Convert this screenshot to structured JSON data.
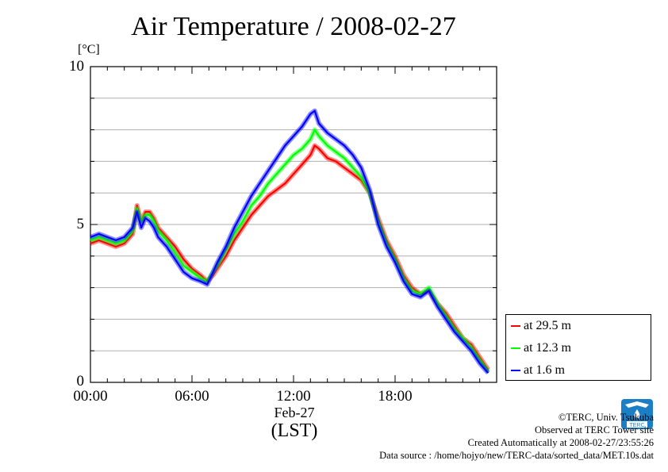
{
  "header": {
    "title": "Air Temperature / 2008-02-27",
    "unit": "[°C]"
  },
  "axis": {
    "y_ticks": [
      "10",
      "5",
      "0"
    ],
    "x_ticks": [
      "00:00",
      "06:00",
      "12:00",
      "18:00"
    ],
    "date_label": "Feb-27",
    "tz_label": "(LST)"
  },
  "legend": {
    "items": [
      {
        "label": "at 29.5 m",
        "color": "#ff0000"
      },
      {
        "label": "at 12.3 m",
        "color": "#00ff00"
      },
      {
        "label": "at 1.6 m",
        "color": "#0000ff"
      }
    ]
  },
  "credits": {
    "copyright": "©TERC, Univ. Tsukuba",
    "site": "Observed at TERC Tower site",
    "created": "Created Automatically at 2008-02-27/23:55:26",
    "source": "Data source : /home/hojyo/new/TERC-data/sorted_data/MET.10s.dat",
    "logo_text": "TERC"
  },
  "chart_data": {
    "type": "line",
    "title": "Air Temperature / 2008-02-27",
    "xlabel": "Feb-27 (LST)",
    "ylabel": "[°C]",
    "xlim": [
      0,
      24
    ],
    "ylim": [
      0,
      10
    ],
    "x_ticks": [
      0,
      6,
      12,
      18
    ],
    "y_ticks": [
      0,
      5,
      10
    ],
    "grid": "horizontal",
    "legend_position": "bottom-right outside",
    "x": [
      0,
      0.5,
      1,
      1.5,
      2,
      2.5,
      2.75,
      3,
      3.25,
      3.5,
      3.75,
      4,
      4.5,
      5,
      5.5,
      6,
      6.5,
      6.9,
      7.25,
      7.5,
      8,
      8.5,
      9,
      9.5,
      10,
      10.5,
      11,
      11.5,
      12,
      12.5,
      13,
      13.25,
      13.5,
      14,
      14.5,
      15,
      15.5,
      16,
      16.5,
      17,
      17.5,
      18,
      18.5,
      19,
      19.5,
      20,
      20.5,
      21,
      21.5,
      22,
      22.5,
      23,
      23.5
    ],
    "series": [
      {
        "name": "at 29.5 m",
        "color": "#ff0000",
        "values": [
          4.4,
          4.5,
          4.4,
          4.3,
          4.4,
          4.7,
          5.6,
          5.1,
          5.4,
          5.4,
          5.2,
          4.9,
          4.6,
          4.3,
          3.9,
          3.6,
          3.4,
          3.2,
          3.4,
          3.6,
          4.0,
          4.5,
          4.9,
          5.3,
          5.6,
          5.9,
          6.1,
          6.3,
          6.6,
          6.9,
          7.2,
          7.5,
          7.4,
          7.1,
          7.0,
          6.8,
          6.6,
          6.4,
          6.0,
          5.2,
          4.5,
          4.0,
          3.4,
          3.0,
          2.8,
          2.9,
          2.5,
          2.2,
          1.8,
          1.4,
          1.2,
          0.8,
          0.4
        ]
      },
      {
        "name": "at 12.3 m",
        "color": "#00ff00",
        "values": [
          4.5,
          4.6,
          4.5,
          4.4,
          4.5,
          4.8,
          5.5,
          5.1,
          5.3,
          5.3,
          5.1,
          4.8,
          4.5,
          4.1,
          3.7,
          3.5,
          3.3,
          3.2,
          3.5,
          3.7,
          4.2,
          4.7,
          5.1,
          5.6,
          5.9,
          6.3,
          6.6,
          6.9,
          7.2,
          7.4,
          7.7,
          8.0,
          7.8,
          7.5,
          7.3,
          7.1,
          6.8,
          6.5,
          6.0,
          5.1,
          4.4,
          3.9,
          3.3,
          2.9,
          2.8,
          3.0,
          2.5,
          2.1,
          1.7,
          1.4,
          1.1,
          0.7,
          0.35
        ]
      },
      {
        "name": "at 1.6 m",
        "color": "#0000ff",
        "values": [
          4.6,
          4.7,
          4.6,
          4.5,
          4.6,
          4.9,
          5.4,
          4.9,
          5.2,
          5.1,
          4.9,
          4.6,
          4.3,
          3.9,
          3.5,
          3.3,
          3.2,
          3.1,
          3.5,
          3.8,
          4.3,
          4.9,
          5.4,
          5.9,
          6.3,
          6.7,
          7.1,
          7.5,
          7.8,
          8.1,
          8.5,
          8.6,
          8.2,
          7.9,
          7.7,
          7.5,
          7.2,
          6.8,
          6.1,
          5.0,
          4.3,
          3.8,
          3.2,
          2.8,
          2.7,
          2.9,
          2.4,
          2.0,
          1.6,
          1.3,
          1.0,
          0.6,
          0.3
        ]
      }
    ]
  }
}
